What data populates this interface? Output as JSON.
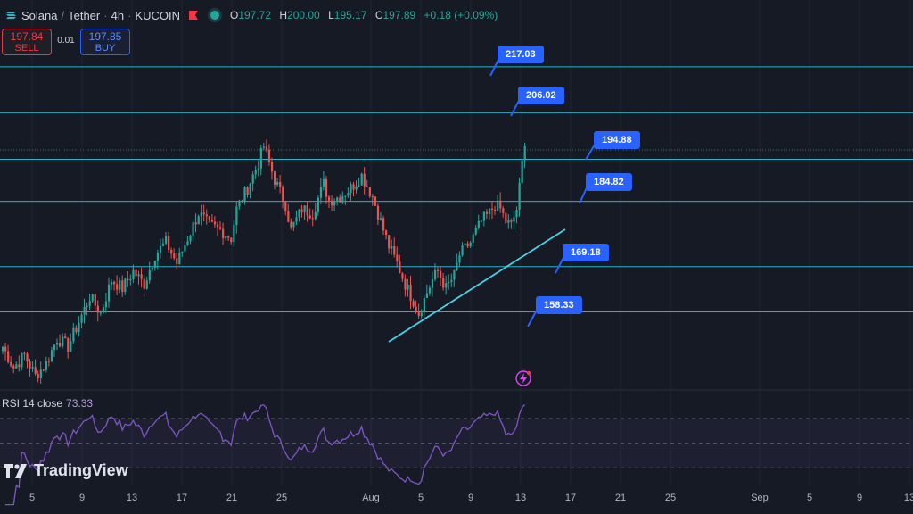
{
  "header": {
    "base": "Solana",
    "quote": "Tether",
    "interval": "4h",
    "exchange": "KUCOIN",
    "ohlc": {
      "o_label": "O",
      "o": "197.72",
      "h_label": "H",
      "h": "200.00",
      "l_label": "L",
      "l": "195.17",
      "c_label": "C",
      "c": "197.89",
      "change": "+0.18 (+0.09%)"
    }
  },
  "trade": {
    "sell_price": "197.84",
    "sell_label": "SELL",
    "spread": "0.01",
    "buy_price": "197.85",
    "buy_label": "BUY"
  },
  "levels": [
    "217.03",
    "206.02",
    "194.88",
    "184.82",
    "169.18",
    "158.33"
  ],
  "rsi": {
    "label": "RSI 14 close",
    "value": "73.33"
  },
  "logo": "TradingView",
  "x_axis": [
    "5",
    "9",
    "13",
    "17",
    "21",
    "25",
    "Aug",
    "5",
    "9",
    "13",
    "17",
    "21",
    "25",
    "Sep",
    "5",
    "9",
    "13"
  ],
  "colors": {
    "bg": "#161a25",
    "up": "#26a69a",
    "down": "#ef5350",
    "level": "#26c6da",
    "callout": "#2962ff",
    "rsi": "#7e57c2"
  },
  "chart_data": {
    "type": "candlestick",
    "price_levels": [
      217.03,
      206.02,
      194.88,
      184.82,
      169.18,
      158.33
    ],
    "last_close": 197.89,
    "rsi_period": 14,
    "rsi_last": 73.33,
    "rsi_bands": [
      70,
      50,
      30
    ],
    "path": [
      [
        0,
        150
      ],
      [
        4,
        145
      ],
      [
        8,
        148
      ],
      [
        12,
        143
      ],
      [
        16,
        146
      ],
      [
        20,
        152
      ],
      [
        24,
        150
      ],
      [
        28,
        156
      ],
      [
        32,
        162
      ],
      [
        36,
        158
      ],
      [
        40,
        166
      ],
      [
        44,
        164
      ],
      [
        48,
        168
      ],
      [
        52,
        165
      ],
      [
        56,
        172
      ],
      [
        60,
        175
      ],
      [
        64,
        170
      ],
      [
        68,
        176
      ],
      [
        72,
        182
      ],
      [
        76,
        179
      ],
      [
        80,
        178
      ],
      [
        84,
        176
      ],
      [
        86,
        183
      ],
      [
        90,
        188
      ],
      [
        94,
        194
      ],
      [
        96,
        198
      ],
      [
        100,
        190
      ],
      [
        102,
        187
      ],
      [
        104,
        184
      ],
      [
        106,
        178
      ],
      [
        110,
        183
      ],
      [
        114,
        182
      ],
      [
        118,
        189
      ],
      [
        120,
        185
      ],
      [
        124,
        186
      ],
      [
        128,
        188
      ],
      [
        132,
        191
      ],
      [
        136,
        186
      ],
      [
        140,
        178
      ],
      [
        142,
        174
      ],
      [
        145,
        170
      ],
      [
        148,
        165
      ],
      [
        151,
        161
      ],
      [
        153,
        158
      ],
      [
        156,
        163
      ],
      [
        158,
        166
      ],
      [
        160,
        168
      ],
      [
        163,
        164
      ],
      [
        166,
        167
      ],
      [
        168,
        172
      ],
      [
        172,
        175
      ],
      [
        176,
        180
      ],
      [
        179,
        182
      ],
      [
        181,
        184
      ],
      [
        183,
        183
      ],
      [
        185,
        180
      ],
      [
        187,
        179
      ],
      [
        189,
        183
      ],
      [
        190,
        188
      ],
      [
        191,
        194
      ],
      [
        192,
        198
      ]
    ]
  }
}
